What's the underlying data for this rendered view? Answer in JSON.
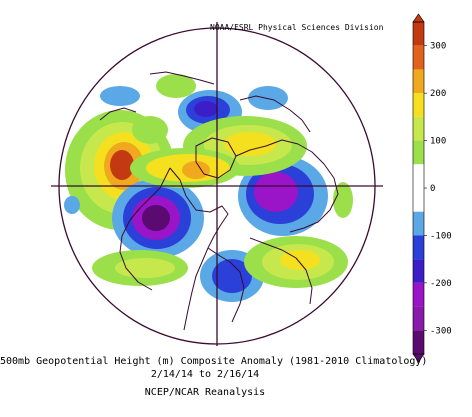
{
  "credit": "NOAA/ESRL Physical Sciences Division",
  "caption": {
    "line1": "500mb Geopotential Height (m) Composite Anomaly (1981-2010 Climatology)",
    "line2": "2/14/14 to 2/16/14",
    "line3": "NCEP/NCAR Reanalysis"
  },
  "colorbar": {
    "tick_labels": [
      "300",
      "200",
      "100",
      "0",
      "-100",
      "-200",
      "-300"
    ],
    "tick_values": [
      300,
      200,
      100,
      0,
      -100,
      -200,
      -300
    ],
    "bins": [
      {
        "value": 325,
        "color": "#c33a12"
      },
      {
        "value": 275,
        "color": "#e1621c"
      },
      {
        "value": 225,
        "color": "#f0a81e"
      },
      {
        "value": 175,
        "color": "#f4e01e"
      },
      {
        "value": 125,
        "color": "#c7e84c"
      },
      {
        "value": 75,
        "color": "#9be04a"
      },
      {
        "value": 25,
        "color": "#ffffff"
      },
      {
        "value": -25,
        "color": "#ffffff"
      },
      {
        "value": -75,
        "color": "#5aa8e6"
      },
      {
        "value": -125,
        "color": "#2a40d8"
      },
      {
        "value": -175,
        "color": "#3c1ec8"
      },
      {
        "value": -225,
        "color": "#9a14c8"
      },
      {
        "value": -275,
        "color": "#8a1aa8"
      },
      {
        "value": -325,
        "color": "#5a0a70"
      }
    ]
  },
  "anomalies": [
    {
      "region": "north-pacific-ridge",
      "sign": "positive",
      "peak": 300
    },
    {
      "region": "north-america-trough",
      "sign": "negative",
      "peak": -300
    },
    {
      "region": "siberia-trough",
      "sign": "negative",
      "peak": -200
    },
    {
      "region": "atlantic-trough",
      "sign": "negative",
      "peak": -200
    },
    {
      "region": "arctic-trough",
      "sign": "negative",
      "peak": -150
    },
    {
      "region": "eurasia-ridge",
      "sign": "positive",
      "peak": 150
    },
    {
      "region": "europe-ridge",
      "sign": "positive",
      "peak": 120
    }
  ]
}
